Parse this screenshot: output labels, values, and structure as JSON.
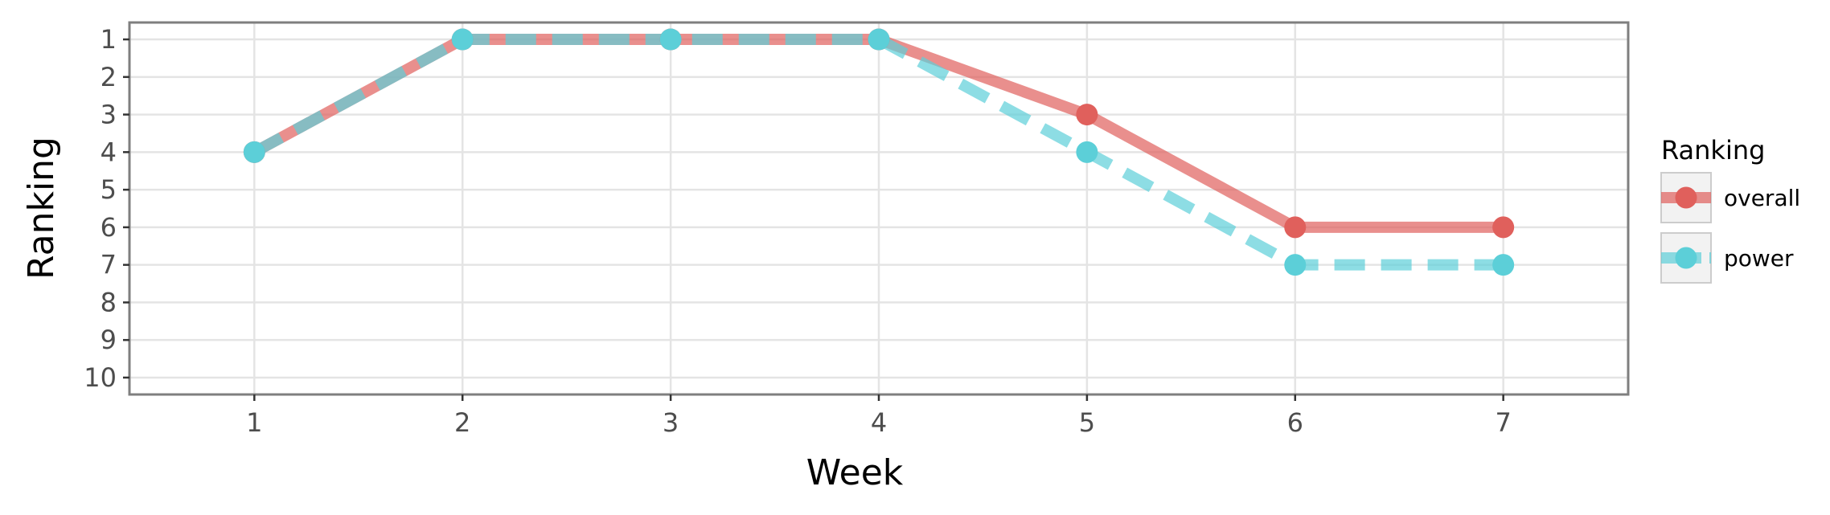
{
  "chart_data": {
    "type": "line",
    "xlabel": "Week",
    "ylabel": "Ranking",
    "x": [
      1,
      2,
      3,
      4,
      5,
      6,
      7
    ],
    "xlim": [
      0.4,
      7.6
    ],
    "ylim": [
      10.45,
      0.55
    ],
    "y_reversed": true,
    "x_ticks": [
      1,
      2,
      3,
      4,
      5,
      6,
      7
    ],
    "y_ticks": [
      1,
      2,
      3,
      4,
      5,
      6,
      7,
      8,
      9,
      10
    ],
    "grid": true,
    "legend": {
      "title": "Ranking",
      "position": "right"
    },
    "series": [
      {
        "name": "overall",
        "values": [
          4,
          1,
          1,
          1,
          3,
          6,
          6
        ],
        "color": "#e0605c",
        "line_style": "solid"
      },
      {
        "name": "power",
        "values": [
          4,
          1,
          1,
          1,
          4,
          7,
          7
        ],
        "color": "#5ccfd8",
        "line_style": "dashed"
      }
    ]
  }
}
